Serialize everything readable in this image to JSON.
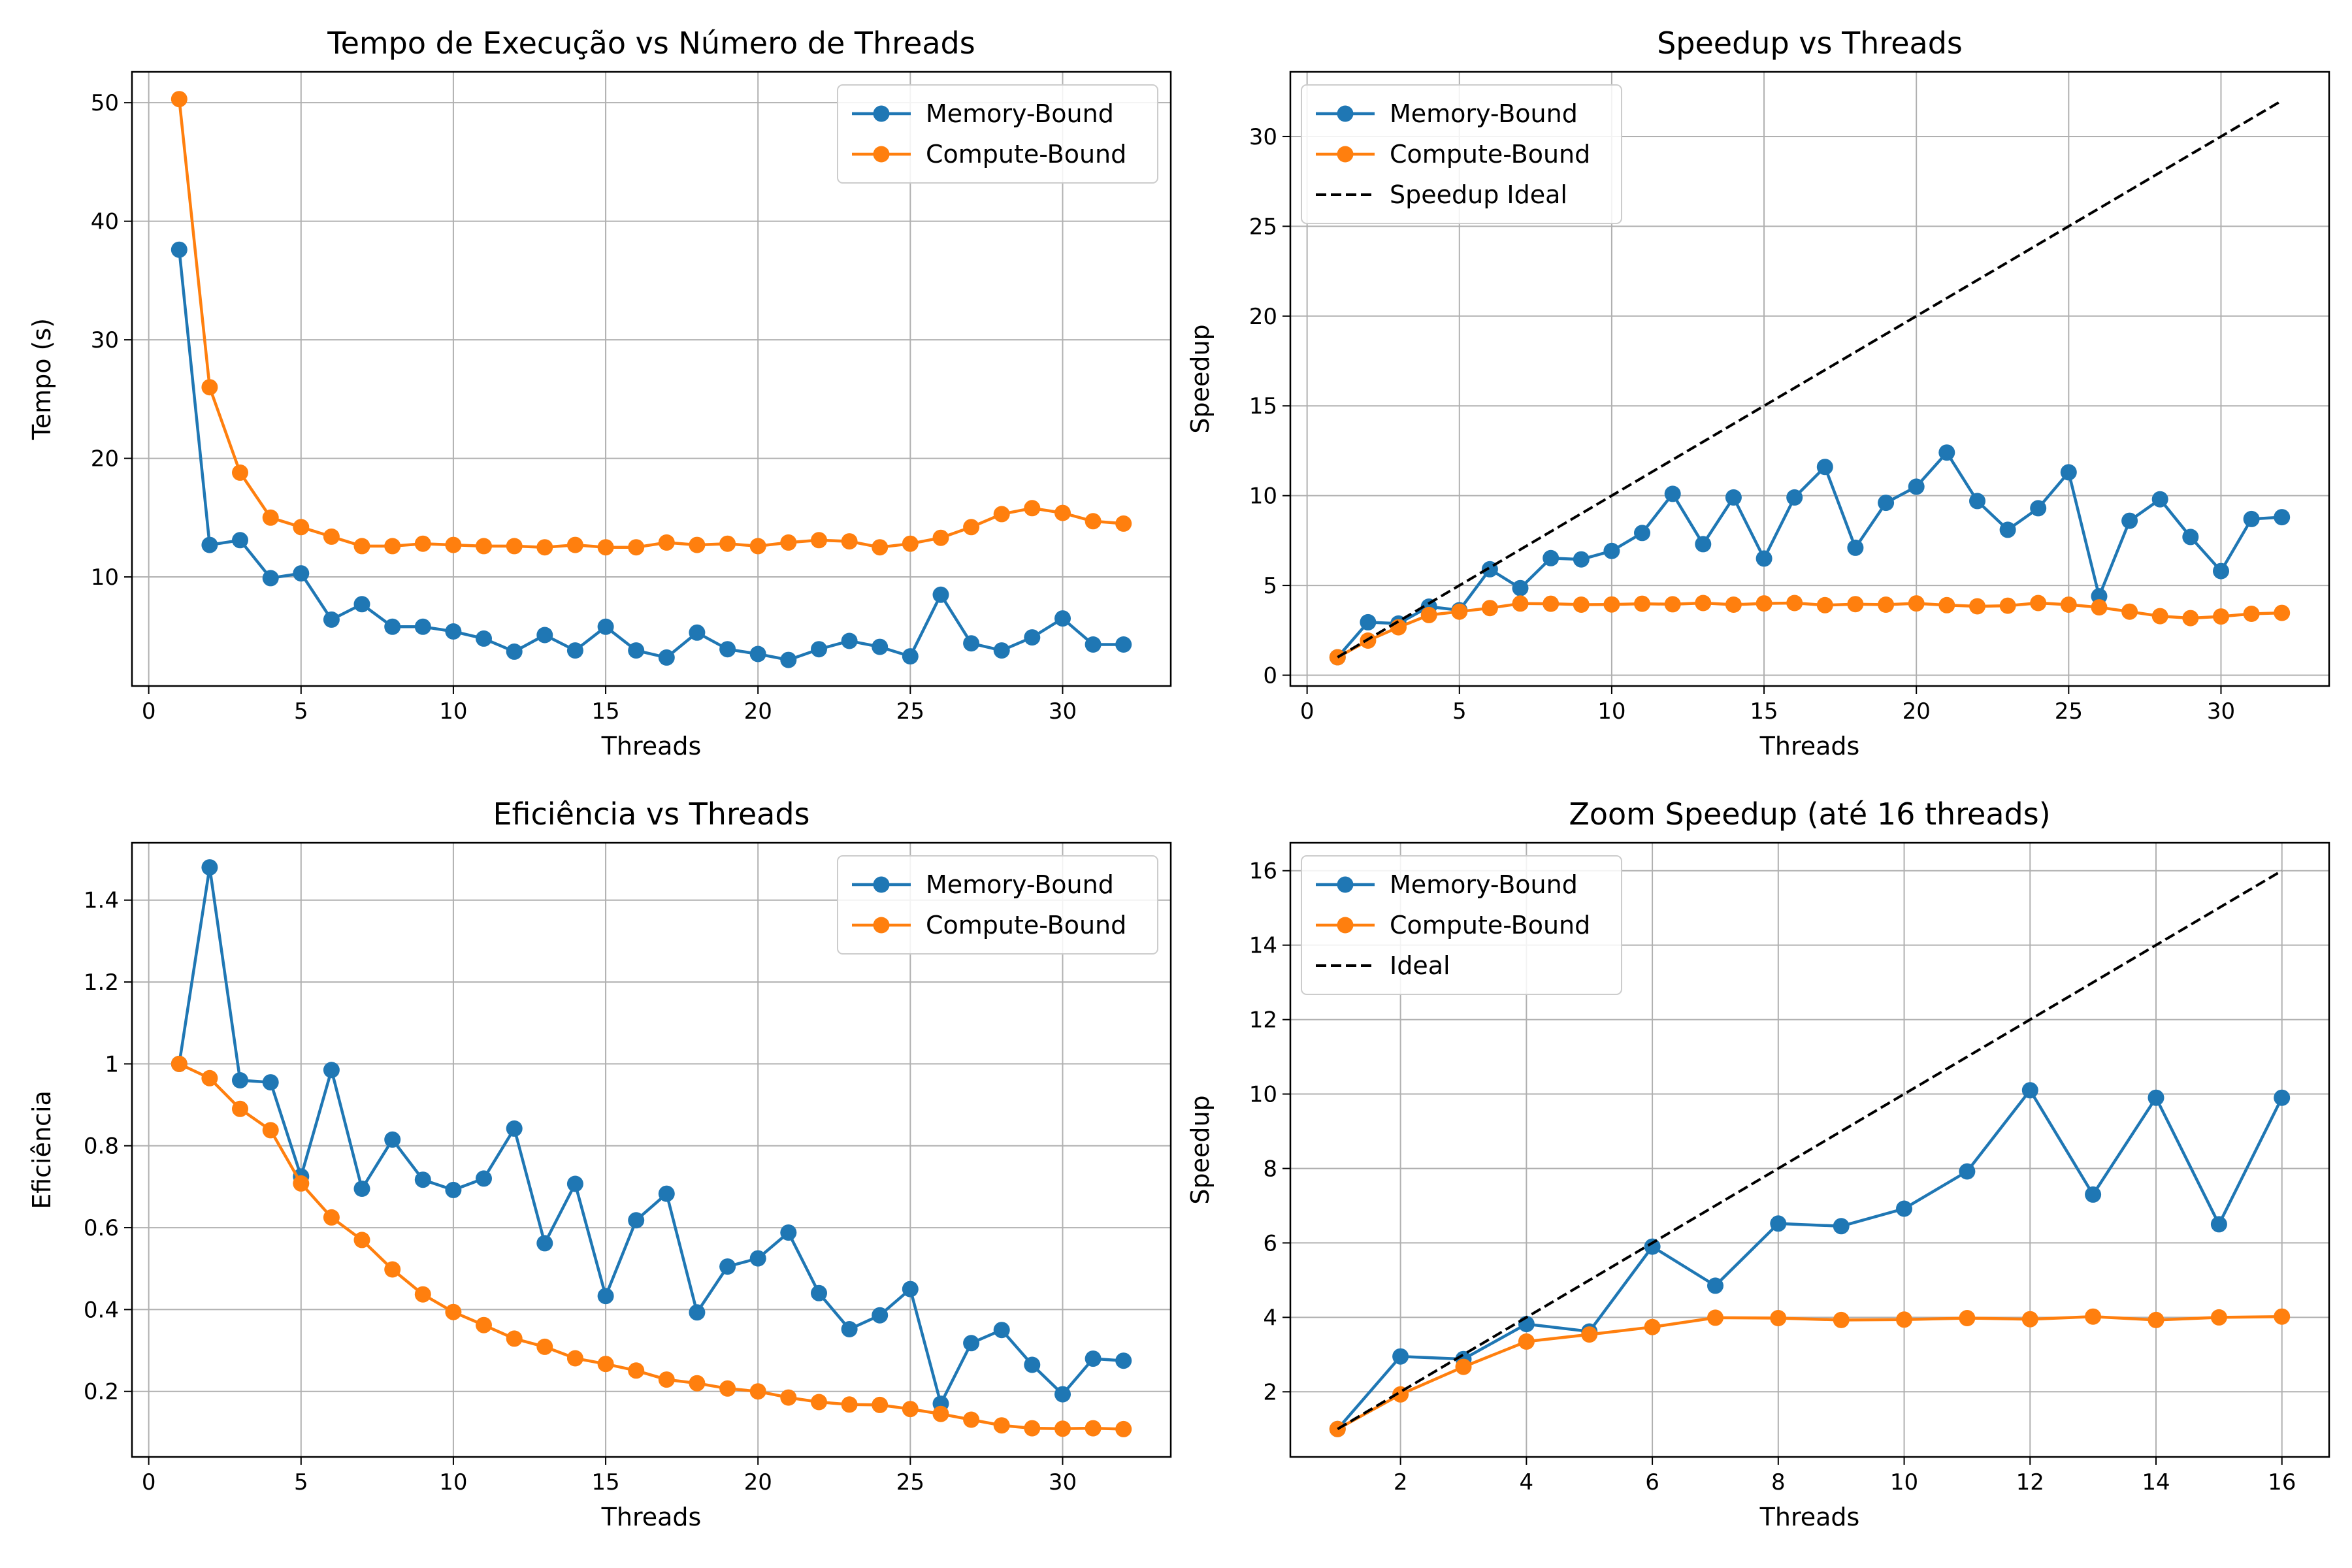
{
  "chart_data": [
    {
      "type": "line",
      "title": "Tempo de Execução vs Número de Threads",
      "xlabel": "Threads",
      "ylabel": "Tempo (s)",
      "xlim": [
        -0.55,
        33.55
      ],
      "ylim": [
        0.8,
        52.6
      ],
      "xticks": [
        0,
        5,
        10,
        15,
        20,
        25,
        30
      ],
      "yticks": [
        10,
        20,
        30,
        40,
        50
      ],
      "grid": true,
      "legend": "top-right",
      "x": [
        1,
        2,
        3,
        4,
        5,
        6,
        7,
        8,
        9,
        10,
        11,
        12,
        13,
        14,
        15,
        16,
        17,
        18,
        19,
        20,
        21,
        22,
        23,
        24,
        25,
        26,
        27,
        28,
        29,
        30,
        31,
        32
      ],
      "series": [
        {
          "name": "Memory-Bound",
          "color": "#1f77b4",
          "marker": "circle",
          "values": [
            37.6,
            12.7,
            13.1,
            9.9,
            10.3,
            6.4,
            7.7,
            5.8,
            5.8,
            5.4,
            4.8,
            3.7,
            5.1,
            3.8,
            5.8,
            3.8,
            3.2,
            5.3,
            3.9,
            3.5,
            3.0,
            3.9,
            4.6,
            4.1,
            3.3,
            8.5,
            4.4,
            3.8,
            4.9,
            6.5,
            4.3,
            4.3
          ]
        },
        {
          "name": "Compute-Bound",
          "color": "#ff7f0e",
          "marker": "circle",
          "values": [
            50.3,
            26.0,
            18.8,
            15.0,
            14.2,
            13.4,
            12.6,
            12.6,
            12.8,
            12.7,
            12.6,
            12.6,
            12.5,
            12.7,
            12.5,
            12.5,
            12.9,
            12.7,
            12.8,
            12.6,
            12.9,
            13.1,
            13.0,
            12.5,
            12.8,
            13.3,
            14.2,
            15.3,
            15.8,
            15.4,
            14.7,
            14.5
          ]
        }
      ]
    },
    {
      "type": "line",
      "title": "Speedup vs Threads",
      "xlabel": "Threads",
      "ylabel": "Speedup",
      "xlim": [
        -0.55,
        33.55
      ],
      "ylim": [
        -0.6,
        33.6
      ],
      "xticks": [
        0,
        5,
        10,
        15,
        20,
        25,
        30
      ],
      "yticks": [
        0,
        5,
        10,
        15,
        20,
        25,
        30
      ],
      "grid": true,
      "legend": "top-left",
      "x": [
        1,
        2,
        3,
        4,
        5,
        6,
        7,
        8,
        9,
        10,
        11,
        12,
        13,
        14,
        15,
        16,
        17,
        18,
        19,
        20,
        21,
        22,
        23,
        24,
        25,
        26,
        27,
        28,
        29,
        30,
        31,
        32
      ],
      "series": [
        {
          "name": "Memory-Bound",
          "color": "#1f77b4",
          "marker": "circle",
          "values": [
            1.0,
            2.95,
            2.88,
            3.82,
            3.62,
            5.9,
            4.85,
            6.52,
            6.45,
            6.92,
            7.92,
            10.1,
            7.3,
            9.9,
            6.5,
            9.9,
            11.6,
            7.1,
            9.6,
            10.5,
            12.4,
            9.7,
            8.1,
            9.3,
            11.3,
            4.4,
            8.6,
            9.8,
            7.7,
            5.8,
            8.7,
            8.8
          ]
        },
        {
          "name": "Compute-Bound",
          "color": "#ff7f0e",
          "marker": "circle",
          "values": [
            1.0,
            1.93,
            2.67,
            3.35,
            3.54,
            3.74,
            3.99,
            3.98,
            3.93,
            3.94,
            3.98,
            3.95,
            4.02,
            3.93,
            4.0,
            4.02,
            3.9,
            3.96,
            3.93,
            4.0,
            3.9,
            3.84,
            3.87,
            4.02,
            3.93,
            3.78,
            3.54,
            3.29,
            3.18,
            3.27,
            3.42,
            3.47
          ]
        },
        {
          "name": "Speedup Ideal",
          "color": "#000000",
          "dash": true,
          "marker": "none",
          "values": [
            1,
            32
          ],
          "x": [
            1,
            32
          ]
        }
      ]
    },
    {
      "type": "line",
      "title": "Eficiência vs Threads",
      "xlabel": "Threads",
      "ylabel": "Eficiência",
      "xlim": [
        -0.55,
        33.55
      ],
      "ylim": [
        0.04,
        1.54
      ],
      "xticks": [
        0,
        5,
        10,
        15,
        20,
        25,
        30
      ],
      "yticks": [
        0.2,
        0.4,
        0.6,
        0.8,
        1.0,
        1.2,
        1.4
      ],
      "grid": true,
      "legend": "top-right",
      "x": [
        1,
        2,
        3,
        4,
        5,
        6,
        7,
        8,
        9,
        10,
        11,
        12,
        13,
        14,
        15,
        16,
        17,
        18,
        19,
        20,
        21,
        22,
        23,
        24,
        25,
        26,
        27,
        28,
        29,
        30,
        31,
        32
      ],
      "series": [
        {
          "name": "Memory-Bound",
          "color": "#1f77b4",
          "marker": "circle",
          "values": [
            1.0,
            1.48,
            0.96,
            0.955,
            0.725,
            0.985,
            0.695,
            0.815,
            0.717,
            0.692,
            0.72,
            0.842,
            0.562,
            0.707,
            0.433,
            0.618,
            0.683,
            0.393,
            0.505,
            0.525,
            0.588,
            0.44,
            0.352,
            0.386,
            0.45,
            0.17,
            0.318,
            0.35,
            0.265,
            0.193,
            0.28,
            0.275
          ]
        },
        {
          "name": "Compute-Bound",
          "color": "#ff7f0e",
          "marker": "circle",
          "values": [
            1.0,
            0.965,
            0.89,
            0.838,
            0.708,
            0.625,
            0.57,
            0.498,
            0.437,
            0.394,
            0.362,
            0.329,
            0.309,
            0.281,
            0.267,
            0.251,
            0.229,
            0.22,
            0.207,
            0.2,
            0.185,
            0.174,
            0.168,
            0.167,
            0.157,
            0.145,
            0.131,
            0.117,
            0.11,
            0.109,
            0.11,
            0.108
          ]
        }
      ]
    },
    {
      "type": "line",
      "title": "Zoom Speedup (até 16 threads)",
      "xlabel": "Threads",
      "ylabel": "Speedup",
      "xlim": [
        0.25,
        16.75
      ],
      "ylim": [
        0.25,
        16.75
      ],
      "xticks": [
        2,
        4,
        6,
        8,
        10,
        12,
        14,
        16
      ],
      "yticks": [
        2,
        4,
        6,
        8,
        10,
        12,
        14,
        16
      ],
      "grid": true,
      "legend": "top-left",
      "x": [
        1,
        2,
        3,
        4,
        5,
        6,
        7,
        8,
        9,
        10,
        11,
        12,
        13,
        14,
        15,
        16
      ],
      "series": [
        {
          "name": "Memory-Bound",
          "color": "#1f77b4",
          "marker": "circle",
          "values": [
            1.0,
            2.95,
            2.88,
            3.82,
            3.62,
            5.9,
            4.85,
            6.52,
            6.45,
            6.92,
            7.92,
            10.1,
            7.3,
            9.9,
            6.5,
            9.9
          ]
        },
        {
          "name": "Compute-Bound",
          "color": "#ff7f0e",
          "marker": "circle",
          "values": [
            1.0,
            1.93,
            2.67,
            3.35,
            3.54,
            3.74,
            3.99,
            3.98,
            3.93,
            3.94,
            3.98,
            3.95,
            4.02,
            3.93,
            4.0,
            4.02
          ]
        },
        {
          "name": "Ideal",
          "color": "#000000",
          "dash": true,
          "marker": "none",
          "values": [
            1,
            16
          ],
          "x": [
            1,
            16
          ]
        }
      ]
    }
  ]
}
